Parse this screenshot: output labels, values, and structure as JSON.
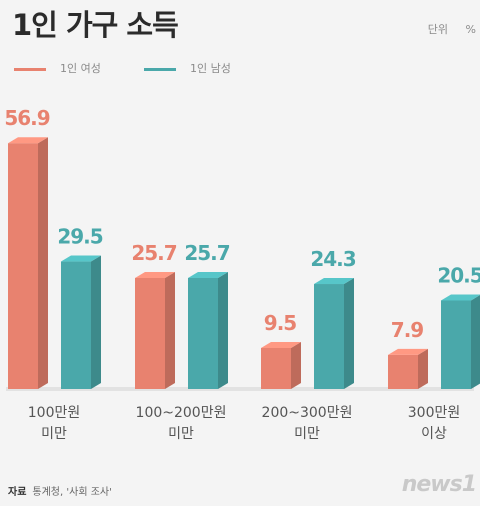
{
  "title": "1인 가구 소득",
  "unit": "단위 %",
  "source_label": "자료",
  "source_text": "통계청, '사회 조사'",
  "logo": "news1",
  "colors": {
    "female": "#e8826f",
    "male": "#4aa8aa"
  },
  "chart_data": {
    "type": "bar",
    "categories": [
      "100만원 미만",
      "100~200만원 미만",
      "200~300만원 미만",
      "300만원 이상"
    ],
    "series": [
      {
        "name": "1인 여성",
        "values": [
          56.9,
          25.7,
          9.5,
          7.9
        ]
      },
      {
        "name": "1인 남성",
        "values": [
          29.5,
          25.7,
          24.3,
          20.5
        ]
      }
    ],
    "value_labels": [
      [
        "56.9",
        "25.7",
        "9.5",
        "7.9"
      ],
      [
        "29.5",
        "25.7",
        "24.3",
        "20.5"
      ]
    ],
    "category_lines": [
      [
        "100만원",
        "미만"
      ],
      [
        "100~200만원",
        "미만"
      ],
      [
        "200~300만원",
        "미만"
      ],
      [
        "300만원",
        "이상"
      ]
    ]
  }
}
